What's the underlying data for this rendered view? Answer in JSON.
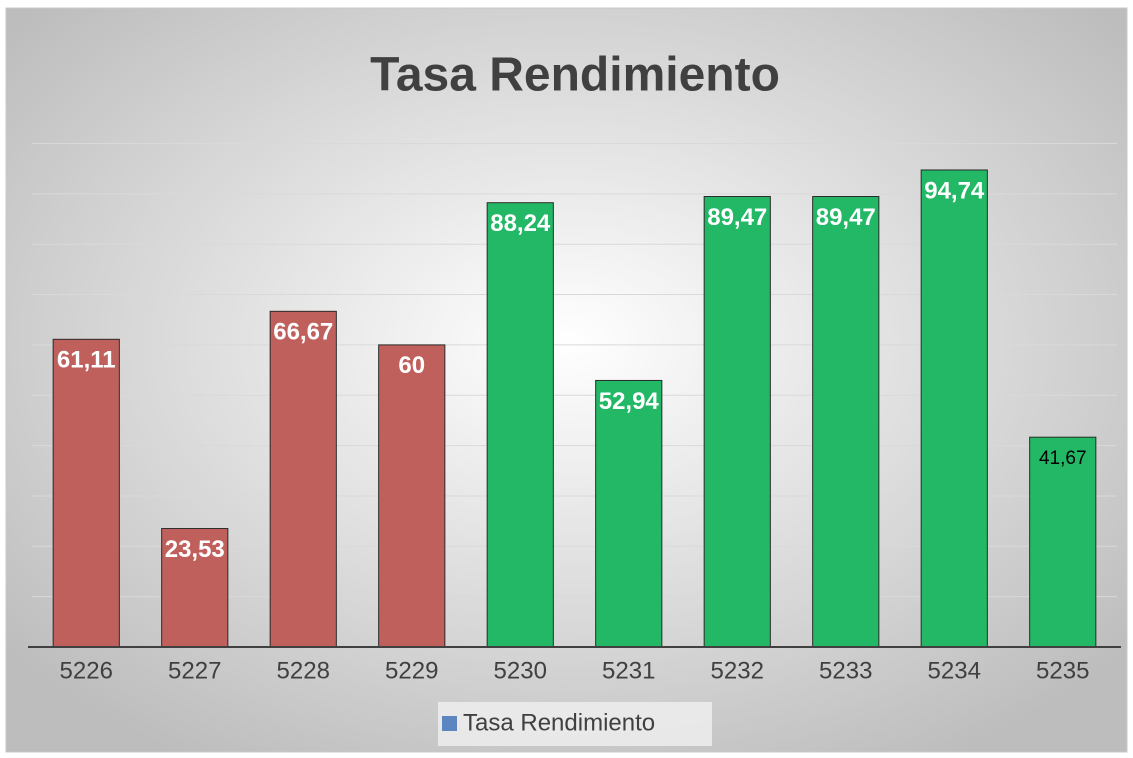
{
  "chart_data": {
    "type": "bar",
    "title": "Tasa Rendimiento",
    "categories": [
      "5226",
      "5227",
      "5228",
      "5229",
      "5230",
      "5231",
      "5232",
      "5233",
      "5234",
      "5235"
    ],
    "series": [
      {
        "name": "Tasa Rendimiento",
        "color": "#5b86c0",
        "values": [
          61.11,
          23.53,
          66.67,
          60,
          88.24,
          52.94,
          89.47,
          89.47,
          94.74,
          41.67
        ],
        "value_labels": [
          "61,11",
          "23,53",
          "66,67",
          "60",
          "88,24",
          "52,94",
          "89,47",
          "89,47",
          "94,74",
          "41,67"
        ],
        "colors": [
          "#c0605c",
          "#c0605c",
          "#c0605c",
          "#c0605c",
          "#22b866",
          "#22b866",
          "#22b866",
          "#22b866",
          "#22b866",
          "#22b866"
        ],
        "label_colors": [
          "#ffffff",
          "#ffffff",
          "#ffffff",
          "#ffffff",
          "#ffffff",
          "#ffffff",
          "#ffffff",
          "#ffffff",
          "#ffffff",
          "#000000"
        ]
      }
    ],
    "ylim": [
      0,
      100
    ],
    "yticks": [
      0,
      10,
      20,
      30,
      40,
      50,
      60,
      70,
      80,
      90,
      100
    ],
    "grid": true,
    "legend": "bottom"
  }
}
